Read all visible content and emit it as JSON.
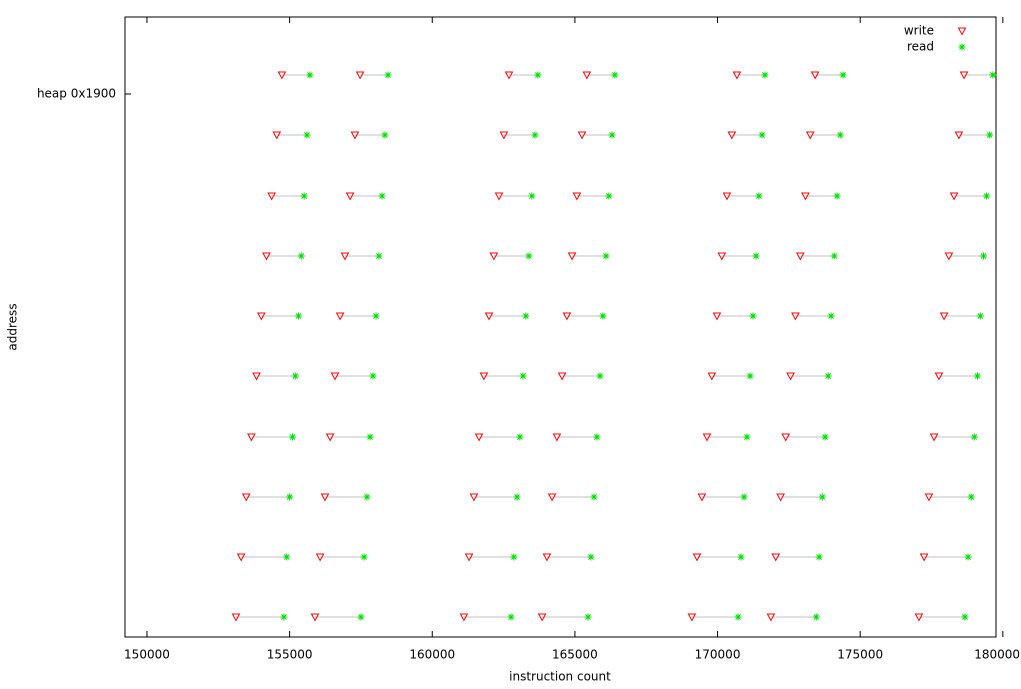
{
  "chart_data": {
    "type": "scatter",
    "x_label": "instruction count",
    "y_label": "address",
    "xlim": [
      149230,
      179760
    ],
    "ylim": [
      5857,
      6477
    ],
    "xticks": [
      150000,
      155000,
      160000,
      165000,
      170000,
      175000,
      180000
    ],
    "yticks": [
      {
        "value": 6400,
        "label": "heap 0x1900"
      }
    ],
    "grid": false,
    "legend": "top-right",
    "connector_color": "#c0c0c0",
    "series": [
      {
        "name": "write",
        "color": "#ff0000",
        "marker": "triangle-down",
        "x": [
          153120,
          153300,
          153480,
          153660,
          153840,
          154010,
          154190,
          154370,
          154550,
          154730,
          155890,
          156070,
          156240,
          156420,
          156590,
          156770,
          156940,
          157120,
          157290,
          157470,
          161110,
          161290,
          161460,
          161640,
          161810,
          161990,
          162160,
          162340,
          162510,
          162690,
          163850,
          164020,
          164200,
          164370,
          164550,
          164720,
          164900,
          165070,
          165250,
          165420,
          169100,
          169280,
          169450,
          169630,
          169800,
          169980,
          170150,
          170330,
          170500,
          170680,
          171870,
          172040,
          172210,
          172390,
          172560,
          172730,
          172900,
          173080,
          173250,
          173420,
          177060,
          177240,
          177410,
          177590,
          177760,
          177940,
          178110,
          178290,
          178460,
          178640
        ],
        "y": [
          5877,
          5937,
          5997,
          6057,
          6118,
          6178,
          6238,
          6298,
          6359,
          6419,
          5877,
          5937,
          5997,
          6057,
          6118,
          6178,
          6238,
          6298,
          6359,
          6419,
          5877,
          5937,
          5997,
          6057,
          6118,
          6178,
          6238,
          6298,
          6359,
          6419,
          5877,
          5937,
          5997,
          6057,
          6118,
          6178,
          6238,
          6298,
          6359,
          6419,
          5877,
          5937,
          5997,
          6057,
          6118,
          6178,
          6238,
          6298,
          6359,
          6419,
          5877,
          5937,
          5997,
          6057,
          6118,
          6178,
          6238,
          6298,
          6359,
          6419,
          5877,
          5937,
          5997,
          6057,
          6118,
          6178,
          6238,
          6298,
          6359,
          6419
        ]
      },
      {
        "name": "read",
        "color": "#00e000",
        "marker": "asterisk",
        "x": [
          154800,
          154900,
          155000,
          155100,
          155200,
          155310,
          155410,
          155510,
          155610,
          155710,
          157500,
          157610,
          157710,
          157820,
          157920,
          158030,
          158130,
          158240,
          158340,
          158450,
          162760,
          162860,
          162970,
          163070,
          163180,
          163280,
          163390,
          163490,
          163600,
          163700,
          165460,
          165560,
          165670,
          165770,
          165880,
          165980,
          166090,
          166190,
          166300,
          166400,
          170720,
          170820,
          170930,
          171030,
          171140,
          171240,
          171350,
          171450,
          171560,
          171660,
          173460,
          173560,
          173670,
          173770,
          173880,
          173980,
          174090,
          174190,
          174300,
          174400,
          178670,
          178780,
          178890,
          179000,
          179110,
          179210,
          179320,
          179430,
          179540,
          179650
        ],
        "y": [
          5877,
          5937,
          5997,
          6057,
          6118,
          6178,
          6238,
          6298,
          6359,
          6419,
          5877,
          5937,
          5997,
          6057,
          6118,
          6178,
          6238,
          6298,
          6359,
          6419,
          5877,
          5937,
          5997,
          6057,
          6118,
          6178,
          6238,
          6298,
          6359,
          6419,
          5877,
          5937,
          5997,
          6057,
          6118,
          6178,
          6238,
          6298,
          6359,
          6419,
          5877,
          5937,
          5997,
          6057,
          6118,
          6178,
          6238,
          6298,
          6359,
          6419,
          5877,
          5937,
          5997,
          6057,
          6118,
          6178,
          6238,
          6298,
          6359,
          6419,
          5877,
          5937,
          5997,
          6057,
          6118,
          6178,
          6238,
          6298,
          6359,
          6419
        ]
      }
    ]
  }
}
